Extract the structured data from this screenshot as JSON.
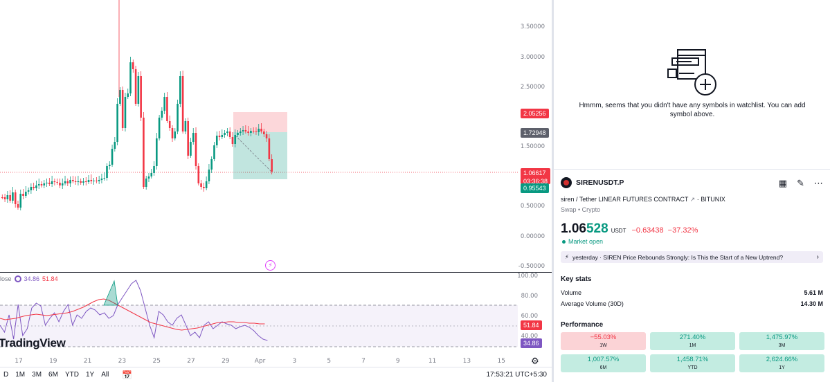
{
  "chart": {
    "price_axis_labels": [
      "3.50000",
      "3.00000",
      "2.50000",
      "1.50000",
      "0.50000",
      "0.00000",
      "-0.50000"
    ],
    "date_labels": [
      "17",
      "19",
      "21",
      "23",
      "25",
      "27",
      "29",
      "Apr",
      "3",
      "5",
      "7",
      "9",
      "11",
      "13",
      "15"
    ],
    "tags": {
      "target": "2.05256",
      "entry": "1.72948",
      "current_price": "1.06617",
      "countdown": "03:36:38",
      "stop": "0.95543"
    },
    "colors": {
      "up": "#089981",
      "down": "#f23645",
      "rsi": "#7e57c2",
      "rsi_ma": "#f23645"
    }
  },
  "rsi": {
    "legend_prefix": "lose",
    "value": "34.86",
    "ma_value": "51.84",
    "axis_labels": [
      "100.00",
      "80.00",
      "60.00",
      "40.00"
    ],
    "tag_ma": "51.84",
    "tag_value": "34.86"
  },
  "watermark": "TradingView",
  "bottom_bar": {
    "ranges": [
      "D",
      "1M",
      "3M",
      "6M",
      "YTD",
      "1Y",
      "All"
    ],
    "time": "17:53:21 UTC+5:30"
  },
  "watchlist": {
    "empty_message": "Hmmm, seems that you didn't have any symbols in watchlist. You can add symbol above."
  },
  "symbol": {
    "ticker": "SIRENUSDT.P",
    "description": "siren / Tether LINEAR FUTURES CONTRACT",
    "exchange": "· BITUNIX",
    "type": "Swap • Crypto",
    "price_main": "1.06",
    "price_tail": "528",
    "currency": "USDT",
    "change": "−0.63438",
    "change_pct": "−37.32%",
    "status": "Market open",
    "news": "yesterday · SIREN Price Rebounds Strongly: Is This the Start of a New Uptrend?"
  },
  "key_stats": {
    "title": "Key stats",
    "rows": [
      {
        "label": "Volume",
        "value": "5.61 M"
      },
      {
        "label": "Average Volume (30D)",
        "value": "14.30 M"
      }
    ]
  },
  "performance": {
    "title": "Performance",
    "cells": [
      {
        "value": "−55.03%",
        "label": "1W",
        "positive": false
      },
      {
        "value": "271.40%",
        "label": "1M",
        "positive": true
      },
      {
        "value": "1,475.97%",
        "label": "3M",
        "positive": true
      },
      {
        "value": "1,007.57%",
        "label": "6M",
        "positive": true
      },
      {
        "value": "1,458.71%",
        "label": "YTD",
        "positive": true
      },
      {
        "value": "2,624.66%",
        "label": "1Y",
        "positive": true
      }
    ]
  }
}
